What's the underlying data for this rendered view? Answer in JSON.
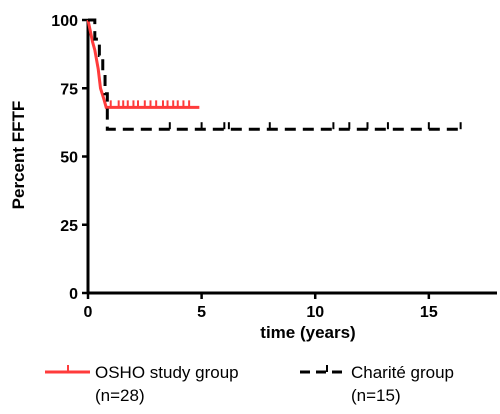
{
  "chart_data": {
    "type": "line",
    "ylabel": "Percent FFTF",
    "xlabel": "time (years)",
    "xlim": [
      0,
      18
    ],
    "ylim": [
      0,
      100
    ],
    "x_ticks": [
      0,
      5,
      10,
      15
    ],
    "y_ticks": [
      0,
      25,
      50,
      75,
      100
    ],
    "grid": false,
    "legend_position": "bottom",
    "series": [
      {
        "name": "OSHO study group",
        "n_label": "(n=28)",
        "color": "#ff3b3b",
        "line_style": "solid",
        "steps": [
          [
            0,
            100
          ],
          [
            0.1,
            96
          ],
          [
            0.2,
            92
          ],
          [
            0.3,
            89
          ],
          [
            0.45,
            82
          ],
          [
            0.55,
            75
          ],
          [
            0.7,
            71
          ],
          [
            0.8,
            68
          ],
          [
            4.9,
            68
          ]
        ],
        "censored": [
          1.0,
          1.35,
          1.55,
          1.75,
          2.0,
          2.2,
          2.5,
          2.75,
          3.0,
          3.3,
          3.5,
          3.75,
          3.95,
          4.2,
          4.45
        ]
      },
      {
        "name": "Charité group",
        "n_label": "(n=15)",
        "color": "#000000",
        "line_style": "dashed",
        "steps": [
          [
            0,
            100
          ],
          [
            0.3,
            100
          ],
          [
            0.3,
            93
          ],
          [
            0.5,
            93
          ],
          [
            0.5,
            87
          ],
          [
            0.65,
            87
          ],
          [
            0.65,
            80
          ],
          [
            0.75,
            80
          ],
          [
            0.75,
            73
          ],
          [
            0.85,
            73
          ],
          [
            0.85,
            60
          ],
          [
            16.5,
            60
          ]
        ],
        "censored": [
          3.6,
          5.0,
          6.0,
          6.2,
          8.0,
          10.8,
          11.5,
          12.3,
          13.2,
          15.0,
          16.4
        ]
      }
    ]
  }
}
